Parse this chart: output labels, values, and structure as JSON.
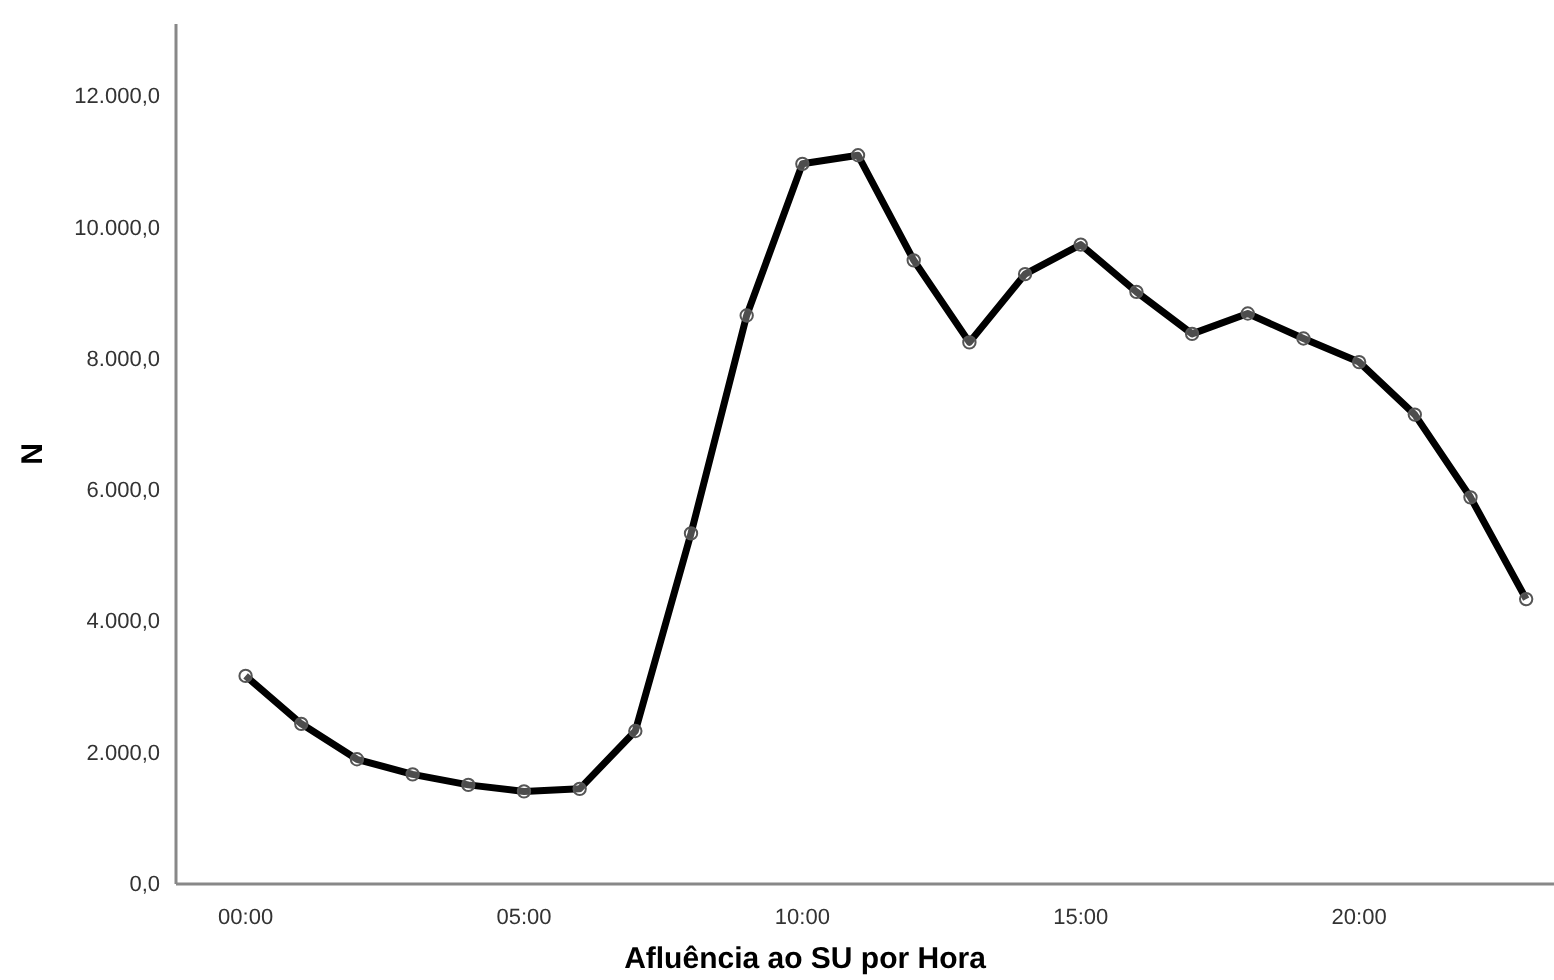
{
  "chart_data": {
    "type": "line",
    "xlabel": "Afluência ao SU por Hora",
    "ylabel": "N",
    "x": [
      0,
      1,
      2,
      3,
      4,
      5,
      6,
      7,
      8,
      9,
      10,
      11,
      12,
      13,
      14,
      15,
      16,
      17,
      18,
      19,
      20,
      21,
      22,
      23
    ],
    "series": [
      {
        "color": "#000000",
        "values": [
          3170,
          2440,
          1900,
          1670,
          1510,
          1410,
          1450,
          2330,
          5340,
          8660,
          10970,
          11100,
          9500,
          8250,
          9290,
          9740,
          9020,
          8380,
          8690,
          8310,
          7950,
          7150,
          5890,
          4340
        ]
      }
    ],
    "xlim": [
      -1.25,
      23.5
    ],
    "xticks": [
      {
        "value": 0,
        "label": "00:00"
      },
      {
        "value": 5,
        "label": "05:00"
      },
      {
        "value": 10,
        "label": "10:00"
      },
      {
        "value": 15,
        "label": "15:00"
      },
      {
        "value": 20,
        "label": "20:00"
      }
    ],
    "ylim": [
      0,
      13100
    ],
    "yticks": [
      {
        "value": 0,
        "label": "0,0"
      },
      {
        "value": 2000,
        "label": "2.000,0"
      },
      {
        "value": 4000,
        "label": "4.000,0"
      },
      {
        "value": 6000,
        "label": "6.000,0"
      },
      {
        "value": 8000,
        "label": "8.000,0"
      },
      {
        "value": 10000,
        "label": "10.000,0"
      },
      {
        "value": 12000,
        "label": "12.000,0"
      }
    ],
    "marker": "circle",
    "line_style": "solid",
    "grid": false
  }
}
